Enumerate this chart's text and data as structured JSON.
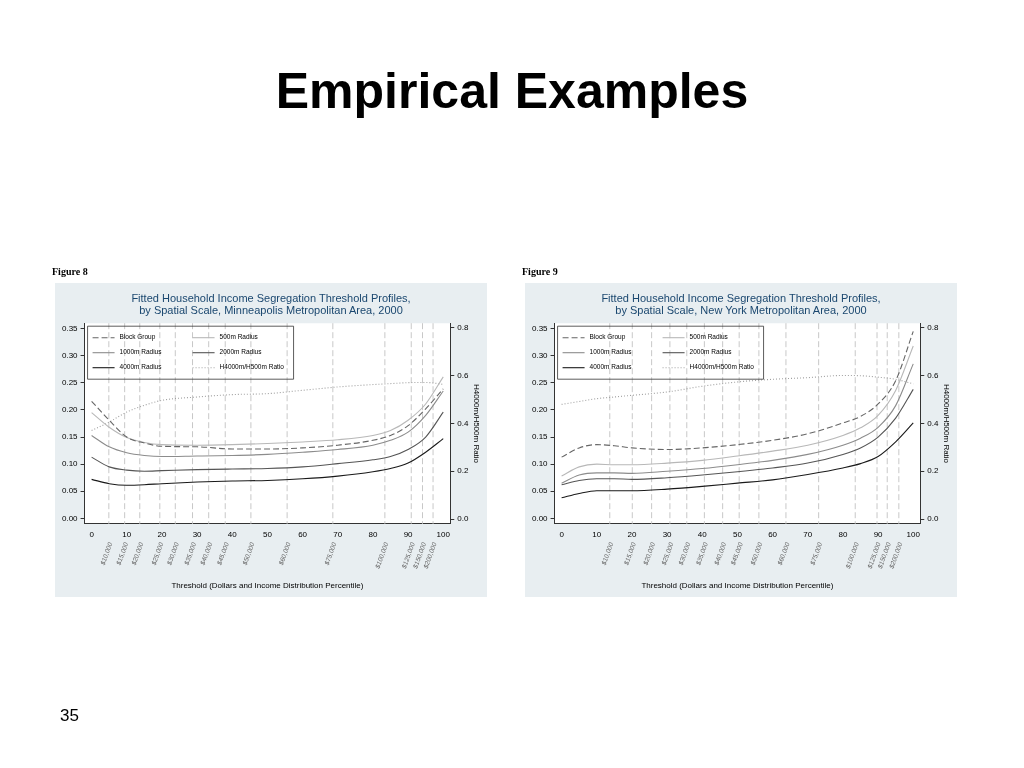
{
  "chart_data": [
    {
      "type": "line",
      "title": "Fitted Household Income Segregation Threshold Profiles, by Spatial Scale, Minneapolis Metropolitan Area, 2000",
      "xlabel": "Threshold (Dollars and Income Distribution Percentile)",
      "y2label": "H4000m/H500m Ratio",
      "legend": "top left",
      "annotations": [
        "Empirical Examples",
        "Figure 8",
        "35",
        {
          "text": "$10,000",
          "x": 4.9,
          "y": -0.01
        },
        {
          "text": "$15,000",
          "x": 9.4,
          "y": -0.01
        },
        {
          "text": "$20,000",
          "x": 13.7,
          "y": -0.01
        },
        {
          "text": "$25,000",
          "x": 19.4,
          "y": -0.01
        },
        {
          "text": "$30,000",
          "x": 23.8,
          "y": -0.01
        },
        {
          "text": "$35,000",
          "x": 28.7,
          "y": -0.01
        },
        {
          "text": "$40,000",
          "x": 33.3,
          "y": -0.01
        },
        {
          "text": "$45,000",
          "x": 38.0,
          "y": -0.01
        },
        {
          "text": "$50,000",
          "x": 45.3,
          "y": -0.01
        },
        {
          "text": "$60,000",
          "x": 55.6,
          "y": -0.01
        },
        {
          "text": "$75,000",
          "x": 68.6,
          "y": -0.01
        },
        {
          "text": "$100,000",
          "x": 83.4,
          "y": -0.01
        },
        {
          "text": "$125,000",
          "x": 90.9,
          "y": -0.01
        },
        {
          "text": "$150,000",
          "x": 94.1,
          "y": -0.01
        },
        {
          "text": "$200,000",
          "x": 97.1,
          "y": -0.01
        }
      ],
      "x": [
        0,
        5,
        10,
        15,
        20,
        30,
        40,
        50,
        60,
        70,
        80,
        85,
        90,
        95,
        100
      ],
      "series": [
        {
          "name": "Block Group",
          "color": "#666666",
          "line_style": "dashed",
          "values": [
            0.216,
            0.181,
            0.15,
            0.139,
            0.133,
            0.132,
            0.128,
            0.128,
            0.13,
            0.135,
            0.144,
            0.153,
            0.171,
            0.202,
            0.239
          ]
        },
        {
          "name": "500m Radius",
          "color": "#b8b8b8",
          "line_style": "solid",
          "values": [
            0.195,
            0.168,
            0.149,
            0.14,
            0.136,
            0.135,
            0.136,
            0.138,
            0.141,
            0.145,
            0.153,
            0.162,
            0.181,
            0.211,
            0.261
          ]
        },
        {
          "name": "1000m Radius",
          "color": "#8c8c8c",
          "line_style": "solid",
          "values": [
            0.153,
            0.132,
            0.121,
            0.116,
            0.114,
            0.115,
            0.116,
            0.118,
            0.122,
            0.127,
            0.135,
            0.144,
            0.159,
            0.19,
            0.235
          ]
        },
        {
          "name": "2000m Radius",
          "color": "#555555",
          "line_style": "solid",
          "values": [
            0.113,
            0.095,
            0.089,
            0.087,
            0.088,
            0.09,
            0.091,
            0.092,
            0.095,
            0.101,
            0.108,
            0.114,
            0.127,
            0.15,
            0.196
          ]
        },
        {
          "name": "4000m Radius",
          "color": "#1a1a1a",
          "line_style": "solid",
          "values": [
            0.072,
            0.064,
            0.061,
            0.062,
            0.064,
            0.067,
            0.069,
            0.07,
            0.073,
            0.078,
            0.086,
            0.092,
            0.102,
            0.122,
            0.147
          ]
        },
        {
          "name": "H4000m/H500m Ratio",
          "color": "#a0a0a0",
          "line_style": "dotted",
          "axis": "y2",
          "values": [
            0.371,
            0.406,
            0.448,
            0.476,
            0.497,
            0.511,
            0.521,
            0.525,
            0.539,
            0.553,
            0.563,
            0.567,
            0.571,
            0.572,
            0.564
          ]
        }
      ],
      "xlim": [
        -2,
        102
      ],
      "xticks": [
        0,
        10,
        20,
        30,
        40,
        50,
        60,
        70,
        80,
        90,
        100
      ],
      "ylim": [
        -0.01,
        0.36
      ],
      "yticks": [
        {
          "value": 0,
          "label": "0.00"
        },
        {
          "value": 0.05,
          "label": "0.05"
        },
        {
          "value": 0.1,
          "label": "0.10"
        },
        {
          "value": 0.15,
          "label": "0.15"
        },
        {
          "value": 0.2,
          "label": "0.20"
        },
        {
          "value": 0.25,
          "label": "0.25"
        },
        {
          "value": 0.3,
          "label": "0.30"
        },
        {
          "value": 0.35,
          "label": "0.35"
        }
      ],
      "y2lim": [
        -0.02,
        0.82
      ],
      "y2ticks": [
        {
          "value": 0,
          "label": "0.0"
        },
        {
          "value": 0.2,
          "label": "0.2"
        },
        {
          "value": 0.4,
          "label": "0.4"
        },
        {
          "value": 0.6,
          "label": "0.6"
        },
        {
          "value": 0.8,
          "label": "0.8"
        }
      ],
      "ref_lines": [
        {
          "axis": "x",
          "value": 4.9
        },
        {
          "axis": "x",
          "value": 9.4
        },
        {
          "axis": "x",
          "value": 13.7
        },
        {
          "axis": "x",
          "value": 19.4
        },
        {
          "axis": "x",
          "value": 23.8
        },
        {
          "axis": "x",
          "value": 28.7
        },
        {
          "axis": "x",
          "value": 33.3
        },
        {
          "axis": "x",
          "value": 38.0
        },
        {
          "axis": "x",
          "value": 45.3
        },
        {
          "axis": "x",
          "value": 55.6
        },
        {
          "axis": "x",
          "value": 68.6
        },
        {
          "axis": "x",
          "value": 83.4
        },
        {
          "axis": "x",
          "value": 90.9
        },
        {
          "axis": "x",
          "value": 94.1
        },
        {
          "axis": "x",
          "value": 97.1
        }
      ]
    },
    {
      "type": "line",
      "title": "Fitted Household Income Segregation Threshold Profiles, by Spatial Scale, New York Metropolitan Area, 2000",
      "xlabel": "Threshold (Dollars and Income Distribution Percentile)",
      "y2label": "H4000m/H500m Ratio",
      "legend": "top left",
      "annotations": [
        "Figure 9",
        {
          "text": "$10,000",
          "x": 13.7,
          "y": -0.01
        },
        {
          "text": "$15,000",
          "x": 20.1,
          "y": -0.01
        },
        {
          "text": "$20,000",
          "x": 25.6,
          "y": -0.01
        },
        {
          "text": "$25,000",
          "x": 30.8,
          "y": -0.01
        },
        {
          "text": "$30,000",
          "x": 35.6,
          "y": -0.01
        },
        {
          "text": "$35,000",
          "x": 40.6,
          "y": -0.01
        },
        {
          "text": "$40,000",
          "x": 45.8,
          "y": -0.01
        },
        {
          "text": "$45,000",
          "x": 50.5,
          "y": -0.01
        },
        {
          "text": "$50,000",
          "x": 56.1,
          "y": -0.01
        },
        {
          "text": "$60,000",
          "x": 63.8,
          "y": -0.01
        },
        {
          "text": "$75,000",
          "x": 73.1,
          "y": -0.01
        },
        {
          "text": "$100,000",
          "x": 83.5,
          "y": -0.01
        },
        {
          "text": "$125,000",
          "x": 89.7,
          "y": -0.01
        },
        {
          "text": "$150,000",
          "x": 92.6,
          "y": -0.01
        },
        {
          "text": "$200,000",
          "x": 95.9,
          "y": -0.01
        }
      ],
      "x": [
        0,
        5,
        10,
        15,
        20,
        30,
        40,
        50,
        60,
        70,
        80,
        85,
        90,
        95,
        100
      ],
      "series": [
        {
          "name": "Block Group",
          "color": "#666666",
          "line_style": "dashed",
          "values": [
            0.113,
            0.13,
            0.136,
            0.134,
            0.13,
            0.127,
            0.13,
            0.136,
            0.144,
            0.156,
            0.176,
            0.188,
            0.211,
            0.254,
            0.345
          ]
        },
        {
          "name": "500m Radius",
          "color": "#b8b8b8",
          "line_style": "solid",
          "values": [
            0.078,
            0.095,
            0.1,
            0.099,
            0.099,
            0.102,
            0.107,
            0.115,
            0.124,
            0.135,
            0.153,
            0.167,
            0.19,
            0.236,
            0.318
          ]
        },
        {
          "name": "1000m Radius",
          "color": "#8c8c8c",
          "line_style": "solid",
          "values": [
            0.065,
            0.08,
            0.084,
            0.084,
            0.083,
            0.087,
            0.092,
            0.099,
            0.107,
            0.118,
            0.135,
            0.148,
            0.168,
            0.208,
            0.285
          ]
        },
        {
          "name": "2000m Radius",
          "color": "#555555",
          "line_style": "solid",
          "values": [
            0.062,
            0.07,
            0.073,
            0.073,
            0.072,
            0.075,
            0.08,
            0.086,
            0.093,
            0.102,
            0.118,
            0.13,
            0.15,
            0.185,
            0.238
          ]
        },
        {
          "name": "4000m Radius",
          "color": "#1a1a1a",
          "line_style": "solid",
          "values": [
            0.038,
            0.046,
            0.051,
            0.051,
            0.051,
            0.054,
            0.059,
            0.065,
            0.071,
            0.081,
            0.093,
            0.101,
            0.114,
            0.141,
            0.176
          ]
        },
        {
          "name": "H4000m/H500m Ratio",
          "color": "#a0a0a0",
          "line_style": "dotted",
          "axis": "y2",
          "values": [
            0.48,
            0.492,
            0.504,
            0.511,
            0.518,
            0.532,
            0.556,
            0.574,
            0.585,
            0.592,
            0.601,
            0.6,
            0.594,
            0.585,
            0.566
          ]
        }
      ],
      "xlim": [
        -2,
        102
      ],
      "xticks": [
        0,
        10,
        20,
        30,
        40,
        50,
        60,
        70,
        80,
        90,
        100
      ],
      "ylim": [
        -0.01,
        0.36
      ],
      "yticks": [
        {
          "value": 0,
          "label": "0.00"
        },
        {
          "value": 0.05,
          "label": "0.05"
        },
        {
          "value": 0.1,
          "label": "0.10"
        },
        {
          "value": 0.15,
          "label": "0.15"
        },
        {
          "value": 0.2,
          "label": "0.20"
        },
        {
          "value": 0.25,
          "label": "0.25"
        },
        {
          "value": 0.3,
          "label": "0.30"
        },
        {
          "value": 0.35,
          "label": "0.35"
        }
      ],
      "y2lim": [
        -0.02,
        0.82
      ],
      "y2ticks": [
        {
          "value": 0,
          "label": "0.0"
        },
        {
          "value": 0.2,
          "label": "0.2"
        },
        {
          "value": 0.4,
          "label": "0.4"
        },
        {
          "value": 0.6,
          "label": "0.6"
        },
        {
          "value": 0.8,
          "label": "0.8"
        }
      ],
      "ref_lines": [
        {
          "axis": "x",
          "value": 13.7
        },
        {
          "axis": "x",
          "value": 20.1
        },
        {
          "axis": "x",
          "value": 25.6
        },
        {
          "axis": "x",
          "value": 30.8
        },
        {
          "axis": "x",
          "value": 35.6
        },
        {
          "axis": "x",
          "value": 40.6
        },
        {
          "axis": "x",
          "value": 45.8
        },
        {
          "axis": "x",
          "value": 50.5
        },
        {
          "axis": "x",
          "value": 56.1
        },
        {
          "axis": "x",
          "value": 63.8
        },
        {
          "axis": "x",
          "value": 73.1
        },
        {
          "axis": "x",
          "value": 83.5
        },
        {
          "axis": "x",
          "value": 89.7
        },
        {
          "axis": "x",
          "value": 92.6
        },
        {
          "axis": "x",
          "value": 95.9
        }
      ]
    }
  ]
}
